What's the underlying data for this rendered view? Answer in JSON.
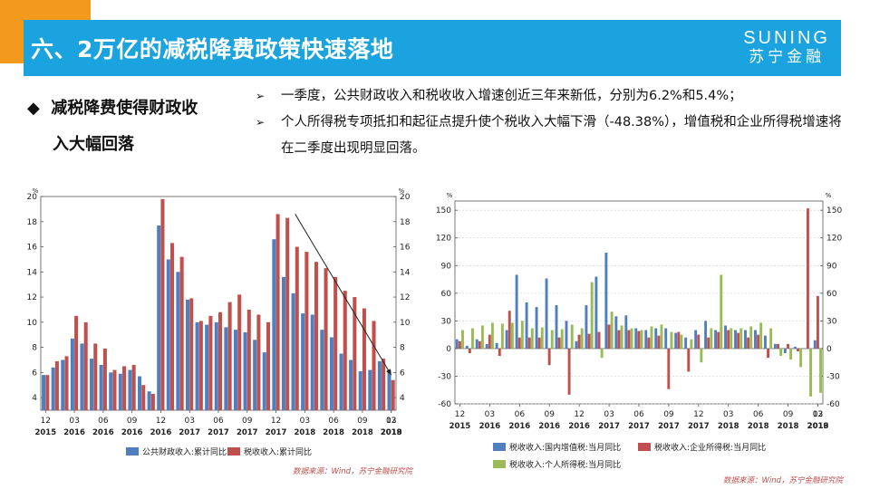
{
  "header": {
    "title": "六、2万亿的减税降费政策快速落地",
    "brand_en": "SUNING",
    "brand_cn": "苏宁金融"
  },
  "section": {
    "bullet": "◆",
    "heading_line1": "减税降费使得财政收",
    "heading_line2": "入大幅回落"
  },
  "notes": [
    {
      "marker": "➢",
      "text": "一季度，公共财政收入和税收收入增速创近三年来新低，分别为6.2%和5.4%；"
    },
    {
      "marker": "➢",
      "text": "个人所得税专项抵扣和起征点提升使个税收入大幅下滑（-48.38%），增值税和企业所得税增速将在二季度出现明显回落。"
    }
  ],
  "colors": {
    "blue": "#4f7fbf",
    "red": "#c0504d",
    "green": "#9bbb59",
    "title_bar": "#1aa3de",
    "accent": "#f39a1c"
  },
  "chart_data": [
    {
      "type": "bar",
      "unit_left": "%",
      "unit_right": "%",
      "ylim": [
        3,
        20
      ],
      "yticks": [
        4,
        6,
        8,
        10,
        12,
        14,
        16,
        18,
        20
      ],
      "x_month_labels": [
        "12",
        "03",
        "06",
        "09",
        "12",
        "03",
        "06",
        "09",
        "12",
        "03",
        "06",
        "09",
        "12",
        "03"
      ],
      "x_year_labels": [
        "2015",
        "2016",
        "2016",
        "2016",
        "2016",
        "2017",
        "2017",
        "2017",
        "2017",
        "2018",
        "2018",
        "2018",
        "2018",
        "2019"
      ],
      "series": [
        {
          "name": "公共财政收入:累计同比",
          "color": "#4f7fbf",
          "values": [
            5.8,
            6.4,
            7.0,
            8.7,
            8.3,
            7.1,
            6.6,
            6.0,
            5.9,
            6.2,
            5.7,
            4.5,
            17.7,
            15.0,
            14.0,
            11.8,
            10.0,
            9.8,
            10.0,
            9.6,
            9.4,
            9.2,
            8.6,
            7.6,
            16.6,
            13.6,
            12.3,
            10.7,
            10.6,
            9.4,
            8.8,
            7.5,
            7.0,
            6.1,
            6.2,
            6.9,
            6.2
          ]
        },
        {
          "name": "税收收入:累计同比",
          "color": "#c0504d",
          "values": [
            5.8,
            6.9,
            7.3,
            10.5,
            10.0,
            8.3,
            7.9,
            6.2,
            6.5,
            6.6,
            5.0,
            4.3,
            19.8,
            16.3,
            15.2,
            11.9,
            10.1,
            10.5,
            10.8,
            11.6,
            12.2,
            11.0,
            10.6,
            10.0,
            18.6,
            18.3,
            16.0,
            15.6,
            14.8,
            14.3,
            13.6,
            12.5,
            12.0,
            11.1,
            10.1,
            7.1,
            5.4
          ]
        }
      ],
      "trend_line": {
        "from_index": 26,
        "from_value": 18.6,
        "to_index": 36,
        "to_value": 5.8
      },
      "legend": [
        {
          "label": "公共财政收入:累计同比",
          "color": "#4f7fbf"
        },
        {
          "label": "税收收入:累计同比",
          "color": "#c0504d"
        }
      ],
      "source": "数据来源：Wind，苏宁金融研究院"
    },
    {
      "type": "bar",
      "unit_left": "%",
      "unit_right": "%",
      "ylim": [
        -60,
        160
      ],
      "yticks": [
        -60,
        -30,
        0,
        30,
        60,
        90,
        120,
        150
      ],
      "x_month_labels": [
        "12",
        "03",
        "06",
        "09",
        "12",
        "03",
        "06",
        "09",
        "12",
        "03",
        "06",
        "09",
        "12",
        "03"
      ],
      "x_year_labels": [
        "2015",
        "2016",
        "2016",
        "2016",
        "2016",
        "2017",
        "2017",
        "2017",
        "2017",
        "2018",
        "2018",
        "2018",
        "2018",
        "2019"
      ],
      "series": [
        {
          "name": "税收收入:国内增值税:当月同比",
          "color": "#4f7fbf",
          "values": [
            10,
            3,
            10,
            5,
            6,
            20,
            80,
            50,
            45,
            76,
            47,
            30,
            8,
            47,
            78,
            104,
            35,
            36,
            22,
            20,
            22,
            22,
            17,
            12,
            20,
            30,
            20,
            25,
            20,
            20,
            20,
            14,
            5,
            -5,
            2,
            0,
            9
          ]
        },
        {
          "name": "税收收入:企业所得税:当月同比",
          "color": "#c0504d",
          "values": [
            8,
            -5,
            8,
            15,
            -8,
            41,
            12,
            12,
            12,
            -18,
            12,
            -50,
            15,
            16,
            18,
            26,
            20,
            20,
            19,
            12,
            14,
            -44,
            18,
            -25,
            15,
            12,
            18,
            20,
            17,
            12,
            15,
            -10,
            5,
            5,
            -3,
            152,
            57
          ]
        },
        {
          "name": "税收收入:个人所得税:当月同比",
          "color": "#9bbb59",
          "values": [
            20,
            22,
            25,
            28,
            27,
            28,
            30,
            22,
            23,
            20,
            21,
            26,
            22,
            72,
            -10,
            40,
            25,
            22,
            20,
            24,
            26,
            18,
            15,
            10,
            -15,
            22,
            80,
            22,
            22,
            24,
            28,
            22,
            -8,
            -12,
            -20,
            -52,
            -48
          ]
        }
      ],
      "legend": [
        {
          "label": "税收收入:国内增值税:当月同比",
          "color": "#4f7fbf"
        },
        {
          "label": "税收收入:企业所得税:当月同比",
          "color": "#c0504d"
        },
        {
          "label": "税收收入:个人所得税:当月同比",
          "color": "#9bbb59"
        }
      ],
      "source": "数据来源：Wind，苏宁金融研究院"
    }
  ]
}
